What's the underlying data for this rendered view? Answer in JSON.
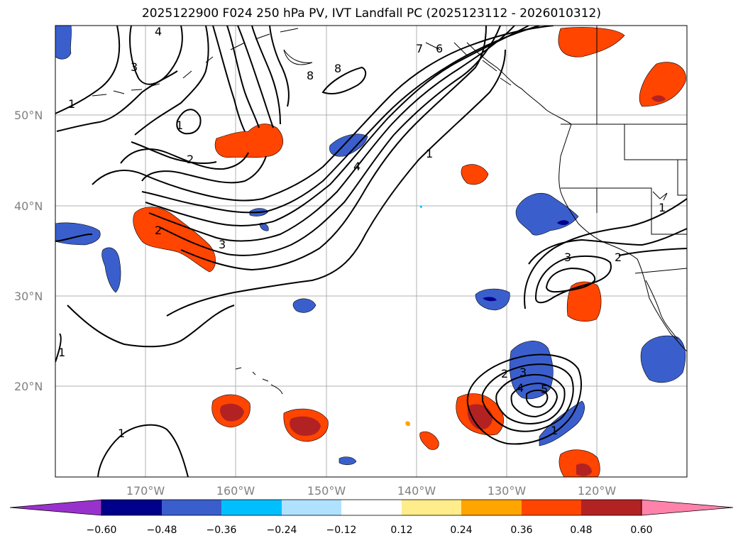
{
  "title": "2025122900 F024 250 hPa PV, IVT Landfall PC (2025123112 - 2026010312)",
  "lat_labels": [
    "50°N",
    "40°N",
    "30°N",
    "20°N"
  ],
  "lon_labels": [
    "170°W",
    "160°W",
    "150°W",
    "140°W",
    "130°W",
    "120°W"
  ],
  "contour_labels": [
    "4",
    "3",
    "1",
    "1",
    "2",
    "2",
    "3",
    "1",
    "7",
    "6",
    "8",
    "8",
    "4",
    "1",
    "1",
    "3",
    "2",
    "1",
    "2",
    "3",
    "4",
    "5",
    "1",
    "1"
  ],
  "colorbar": {
    "ticks": [
      "−0.60",
      "−0.48",
      "−0.36",
      "−0.24",
      "−0.12",
      "0.12",
      "0.24",
      "0.36",
      "0.48",
      "0.60"
    ],
    "colors": [
      "#9932CC",
      "#00008B",
      "#3A5FCD",
      "#00BFFF",
      "#B0E2FF",
      "#FFFFFF",
      "#FFEC8B",
      "#FFA500",
      "#FF4500",
      "#B22222",
      "#FF82AB"
    ]
  }
}
